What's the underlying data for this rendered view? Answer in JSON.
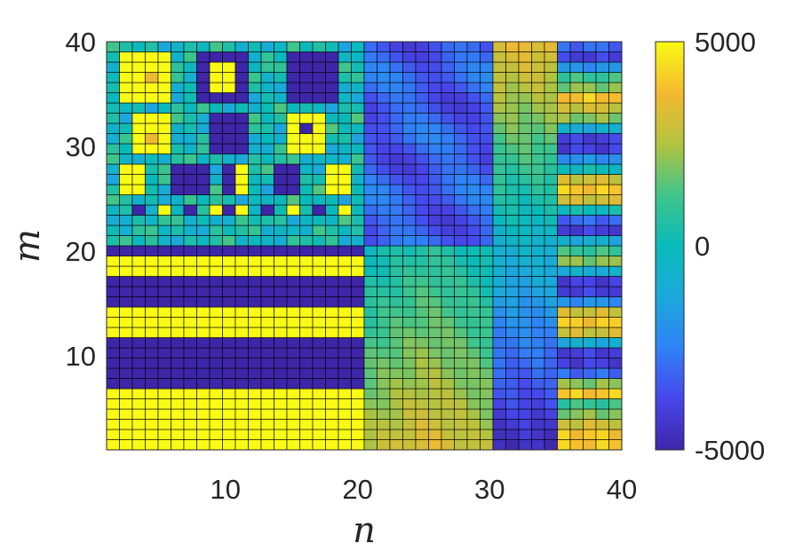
{
  "chart_data": {
    "type": "heatmap",
    "xlabel": "n",
    "ylabel": "m",
    "x_range": [
      1,
      40
    ],
    "y_range": [
      1,
      40
    ],
    "x_ticks": [
      10,
      20,
      30,
      40
    ],
    "y_ticks": [
      10,
      20,
      30,
      40
    ],
    "colorbar": {
      "range": [
        -5000,
        5000
      ],
      "ticks": [
        5000,
        0,
        -5000
      ],
      "tick_labels": [
        "5000",
        "0",
        "-5000"
      ],
      "colormap": "parula"
    },
    "grid_lines": true,
    "regions": [
      {
        "n": [
          1,
          20
        ],
        "m": [
          1,
          20
        ],
        "pattern": "horizontal bands alternating +5000 / -5000"
      },
      {
        "n": [
          1,
          20
        ],
        "m": [
          21,
          40
        ],
        "pattern": "near 0 with block checker of about +/-5000"
      },
      {
        "n": [
          21,
          30
        ],
        "m": [
          1,
          20
        ],
        "pattern": "smooth, about 3500 near bottom to 1000 at m=20"
      },
      {
        "n": [
          21,
          30
        ],
        "m": [
          21,
          40
        ],
        "pattern": "about -2500 to -4500"
      },
      {
        "n": [
          31,
          35
        ],
        "m": [
          1,
          40
        ],
        "pattern": "about -4500 at bottom rising to about 3500 at top"
      },
      {
        "n": [
          36,
          40
        ],
        "m": [
          1,
          40
        ],
        "pattern": "alternating bands about +/-4000"
      }
    ]
  }
}
